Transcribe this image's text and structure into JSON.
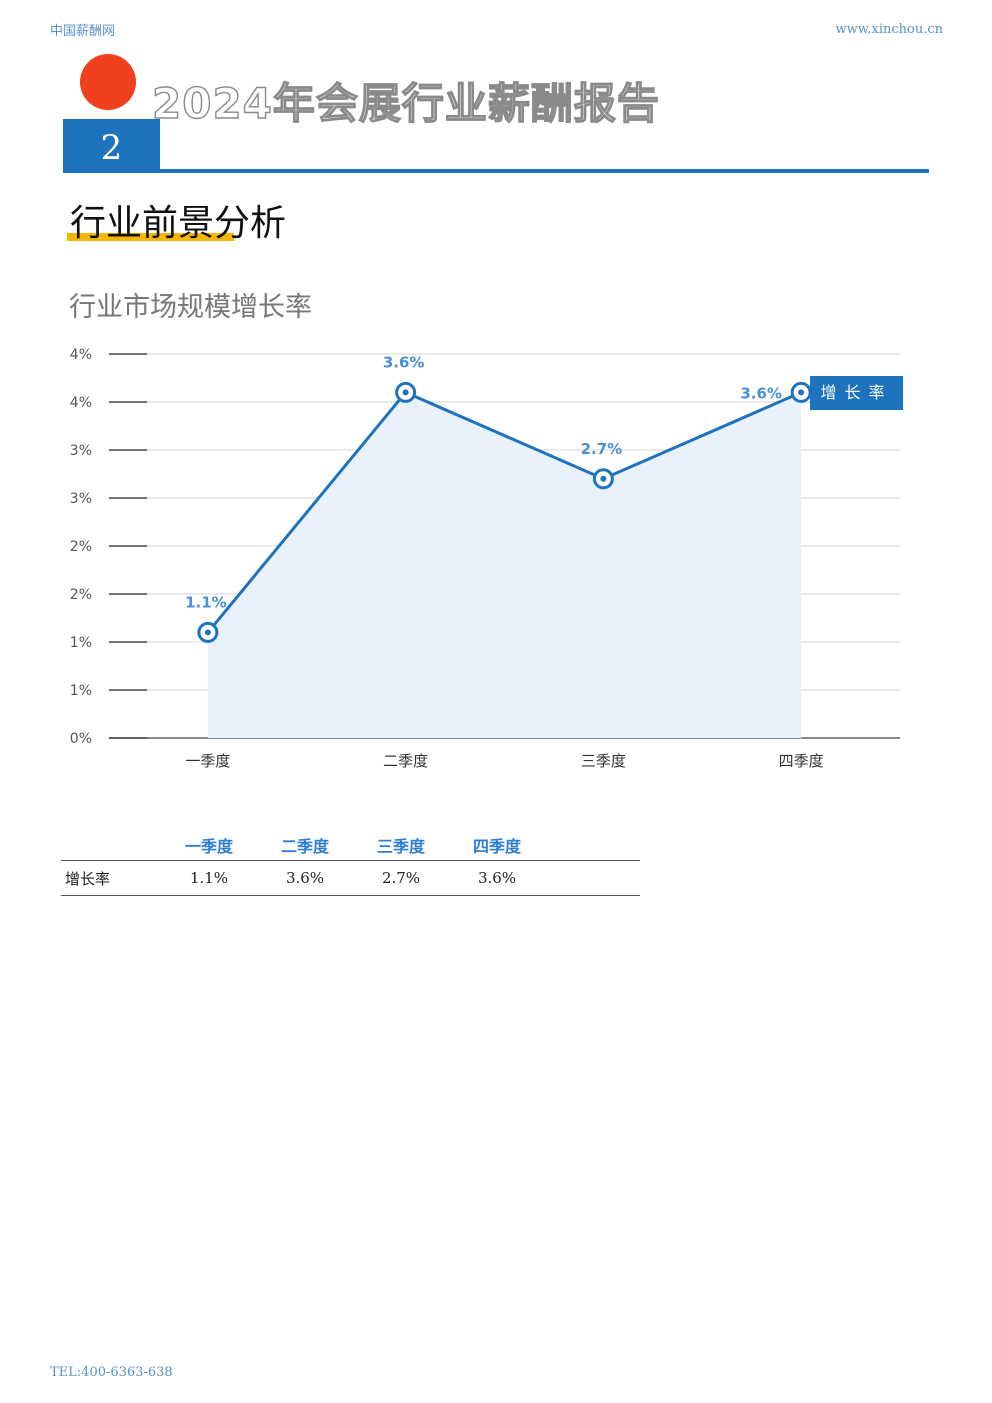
{
  "header": {
    "site_name": "中国薪酬网",
    "url": "www.xinchou.cn"
  },
  "report_title": "2024年会展行业薪酬报告",
  "chapter_number": "2",
  "section_title": "行业前景分析",
  "chart_title": "行业市场规模增长率",
  "colors": {
    "brand_blue": "#1e73be",
    "accent_red": "#f0401e",
    "accent_yellow": "#f5b700"
  },
  "chart_data": {
    "type": "area",
    "title": "行业市场规模增长率",
    "categories": [
      "一季度",
      "二季度",
      "三季度",
      "四季度"
    ],
    "series": [
      {
        "name": "增长率",
        "values": [
          1.1,
          3.6,
          2.7,
          3.6
        ],
        "labels": [
          "1.1%",
          "3.6%",
          "2.7%",
          "3.6%"
        ]
      }
    ],
    "y_ticks": [
      "0%",
      "1%",
      "1%",
      "2%",
      "2%",
      "3%",
      "3%",
      "4%",
      "4%"
    ],
    "ylim": [
      0,
      4
    ],
    "legend": "增长率",
    "legend_position": "right",
    "grid": true
  },
  "table": {
    "headers": [
      "",
      "一季度",
      "二季度",
      "三季度",
      "四季度",
      ""
    ],
    "rows": [
      {
        "label": "增长率",
        "values": [
          "1.1%",
          "3.6%",
          "2.7%",
          "3.6%"
        ]
      }
    ]
  },
  "footer": {
    "tel": "TEL:400-6363-638"
  }
}
